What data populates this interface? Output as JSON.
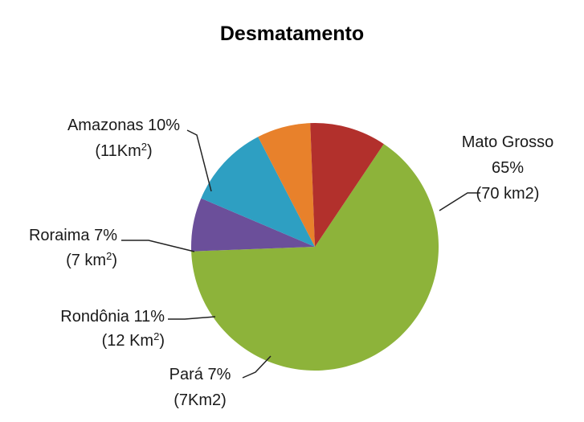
{
  "chart_data": {
    "type": "pie",
    "title": "Desmatamento",
    "slices": [
      {
        "name": "Mato Grosso",
        "value": 65,
        "color": "#8db33a",
        "label_lines": [
          [
            {
              "t": "Mato Grosso"
            }
          ],
          [
            {
              "t": "65%"
            }
          ],
          [
            {
              "t": "(70 km2)"
            }
          ]
        ]
      },
      {
        "name": "Pará",
        "value": 7,
        "color": "#6b4f9a",
        "label_lines": [
          [
            {
              "t": "Pará  7%"
            }
          ],
          [
            {
              "t": "(7Km2)"
            }
          ]
        ]
      },
      {
        "name": "Rondônia",
        "value": 11,
        "color": "#2e9fc2",
        "label_lines": [
          [
            {
              "t": "Rondônia 11%"
            }
          ],
          [
            {
              "t": "(12 Km"
            },
            {
              "t": "2",
              "sup": true
            },
            {
              "t": ")"
            }
          ]
        ]
      },
      {
        "name": "Roraima",
        "value": 7,
        "color": "#e8812b",
        "label_lines": [
          [
            {
              "t": "Roraima 7%"
            }
          ],
          [
            {
              "t": "(7 km"
            },
            {
              "t": "2",
              "sup": true
            },
            {
              "t": ")"
            }
          ]
        ]
      },
      {
        "name": "Amazonas",
        "value": 10,
        "color": "#b2302c",
        "label_lines": [
          [
            {
              "t": "Amazonas 10%"
            }
          ],
          [
            {
              "t": "(11Km"
            },
            {
              "t": "2",
              "sup": true
            },
            {
              "t": ")"
            }
          ]
        ]
      }
    ]
  }
}
